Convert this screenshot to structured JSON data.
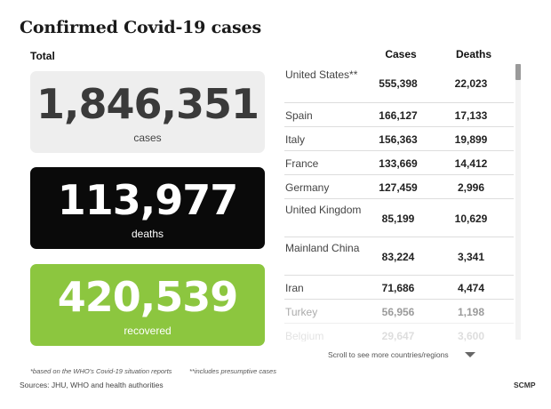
{
  "title": "Confirmed Covid-19 cases",
  "total_label": "Total",
  "stats": {
    "cases": {
      "value": "1,846,351",
      "label": "cases"
    },
    "deaths": {
      "value": "113,977",
      "label": "deaths"
    },
    "recovered": {
      "value": "420,539",
      "label": "recovered"
    }
  },
  "colors": {
    "cases_card": "#eeeeee",
    "deaths_card": "#0a0a0a",
    "recovered_card": "#8cc63f"
  },
  "chart_data": {
    "type": "table",
    "columns": [
      "Cases",
      "Deaths"
    ],
    "rows": [
      {
        "country": "United States**",
        "cases": "555,398",
        "deaths": "22,023"
      },
      {
        "country": "Spain",
        "cases": "166,127",
        "deaths": "17,133"
      },
      {
        "country": "Italy",
        "cases": "156,363",
        "deaths": "19,899"
      },
      {
        "country": "France",
        "cases": "133,669",
        "deaths": "14,412"
      },
      {
        "country": "Germany",
        "cases": "127,459",
        "deaths": "2,996"
      },
      {
        "country": "United Kingdom",
        "cases": "85,199",
        "deaths": "10,629"
      },
      {
        "country": "Mainland China",
        "cases": "83,224",
        "deaths": "3,341"
      },
      {
        "country": "Iran",
        "cases": "71,686",
        "deaths": "4,474"
      },
      {
        "country": "Turkey",
        "cases": "56,956",
        "deaths": "1,198"
      },
      {
        "country": "Belgium",
        "cases": "29,647",
        "deaths": "3,600"
      }
    ]
  },
  "scroll_hint": "Scroll to see more countries/regions",
  "footnotes": {
    "who": "*based on the WHO's Covid-19 situation reports",
    "presumptive": "**includes presumptive cases"
  },
  "sources": "Sources: JHU, WHO and health authorities",
  "credit": "SCMP"
}
